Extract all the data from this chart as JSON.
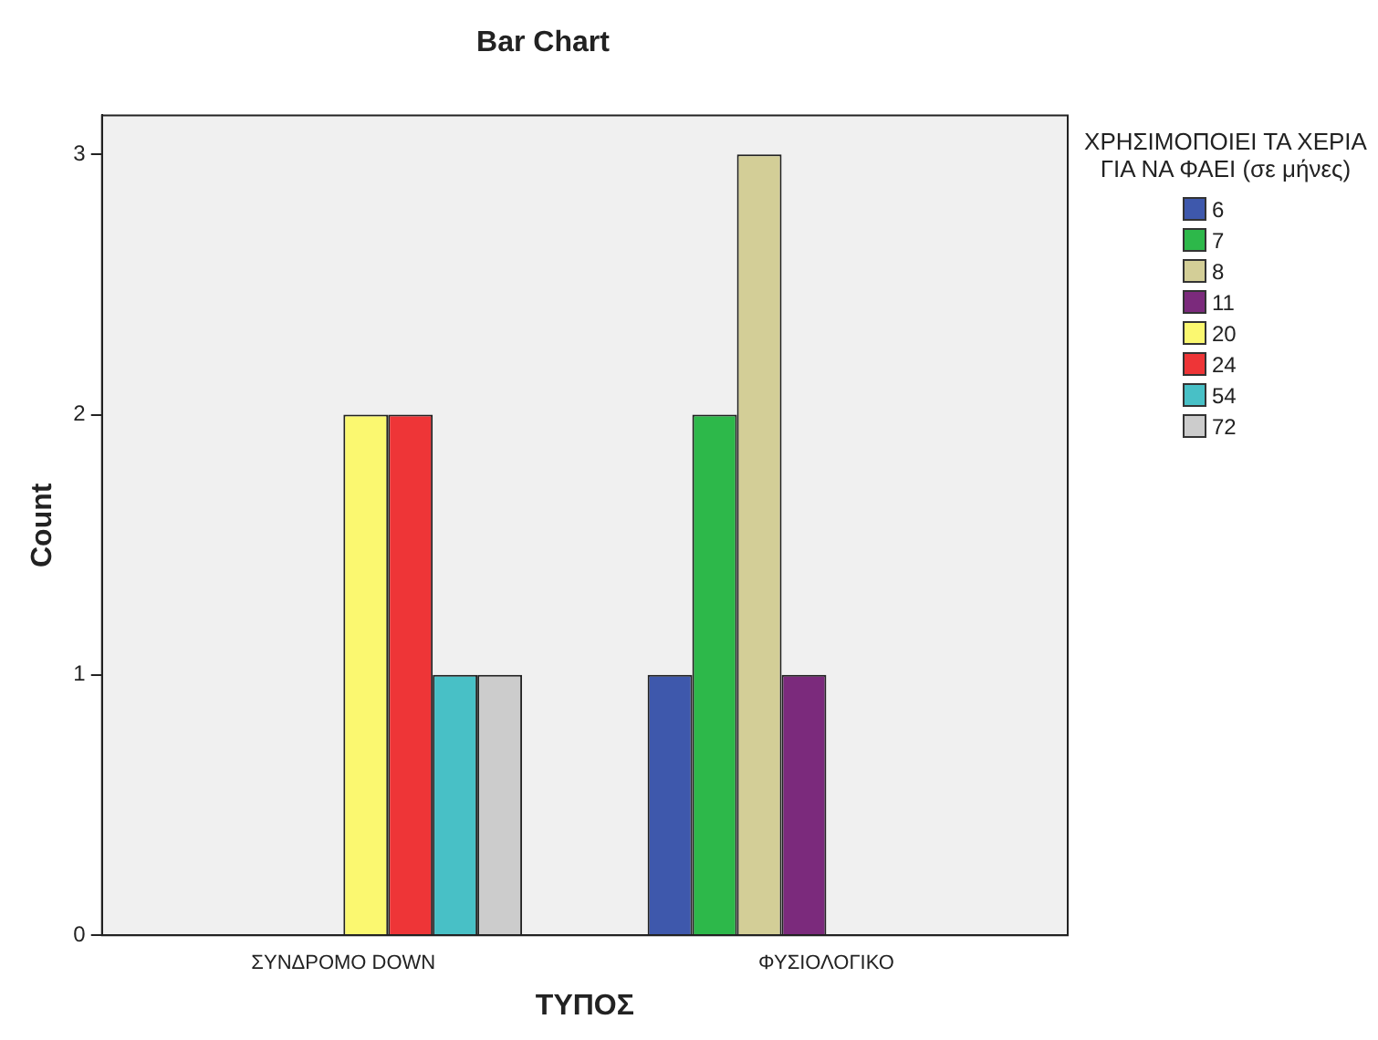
{
  "chart_data": {
    "type": "bar",
    "title": "Bar Chart",
    "xlabel": "ΤΥΠΟΣ",
    "ylabel": "Count",
    "legend_title": "ΧΡΗΣΙΜΟΠΟΙΕΙ ΤΑ ΧΕΡΙΑ ΓΙΑ ΝΑ ΦΑΕΙ (σε μήνες)",
    "categories": [
      "ΣΥΝΔΡΟΜΟ DOWN",
      "ΦΥΣΙΟΛΟΓΙΚΟ"
    ],
    "series": [
      {
        "name": "6",
        "color": "#3e58ac",
        "values": [
          null,
          1
        ]
      },
      {
        "name": "7",
        "color": "#2db84a",
        "values": [
          null,
          2
        ]
      },
      {
        "name": "8",
        "color": "#d3ce97",
        "values": [
          null,
          3
        ]
      },
      {
        "name": "11",
        "color": "#7b2a7c",
        "values": [
          null,
          1
        ]
      },
      {
        "name": "20",
        "color": "#fbf870",
        "values": [
          2,
          null
        ]
      },
      {
        "name": "24",
        "color": "#ee3537",
        "values": [
          2,
          null
        ]
      },
      {
        "name": "54",
        "color": "#48c0c6",
        "values": [
          1,
          null
        ]
      },
      {
        "name": "72",
        "color": "#cccccc",
        "values": [
          1,
          null
        ]
      }
    ],
    "ylim": [
      0,
      3.15
    ],
    "yticks": [
      0,
      1,
      2,
      3
    ],
    "grid": false,
    "legend": "right"
  }
}
